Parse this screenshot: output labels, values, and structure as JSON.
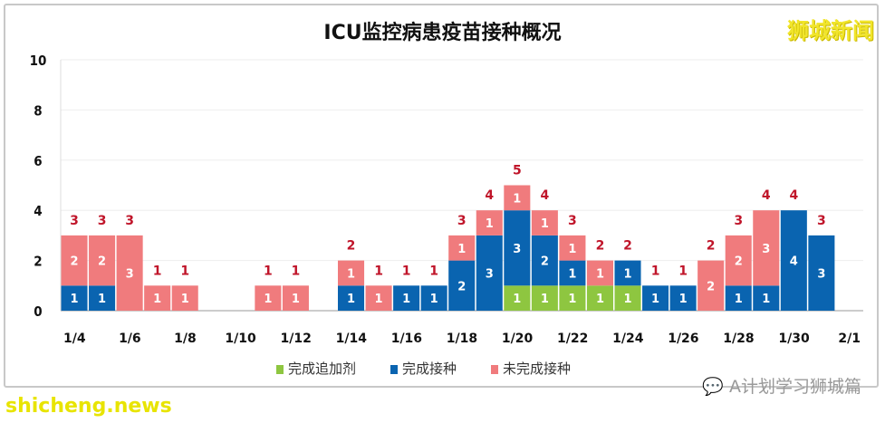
{
  "brand": "狮城新闻",
  "wechat_account": "A计划学习狮城篇",
  "watermark": "shicheng.news",
  "colors": {
    "booster": "#8ec640",
    "complete": "#0a64b0",
    "incomplete": "#f07b7d",
    "total_label": "#c0152a"
  },
  "chart_data": {
    "type": "bar",
    "stacked": true,
    "title": "ICU监控病患疫苗接种概况",
    "xlabel": "",
    "ylabel": "",
    "ylim": [
      0,
      10
    ],
    "yticks": [
      "0",
      "2",
      "4",
      "6",
      "8",
      "10"
    ],
    "grid": true,
    "legend_position": "bottom",
    "categories": [
      "1/4",
      "1/5",
      "1/6",
      "1/7",
      "1/8",
      "1/9",
      "1/10",
      "1/11",
      "1/12",
      "1/13",
      "1/14",
      "1/15",
      "1/16",
      "1/17",
      "1/18",
      "1/19",
      "1/20",
      "1/21",
      "1/22",
      "1/23",
      "1/24",
      "1/25",
      "1/26",
      "1/27",
      "1/28",
      "1/29",
      "1/30",
      "1/31"
    ],
    "xticks": [
      "1/4",
      "1/6",
      "1/8",
      "1/10",
      "1/12",
      "1/14",
      "1/16",
      "1/18",
      "1/20",
      "1/22",
      "1/24",
      "1/26",
      "1/28",
      "1/30",
      "2/1"
    ],
    "series": [
      {
        "name": "完成追加剂",
        "values": [
          0,
          0,
          0,
          0,
          0,
          0,
          0,
          0,
          0,
          0,
          0,
          0,
          0,
          0,
          0,
          0,
          1,
          1,
          1,
          1,
          1,
          0,
          0,
          0,
          0,
          0,
          0,
          0
        ]
      },
      {
        "name": "完成接种",
        "values": [
          1,
          1,
          0,
          0,
          0,
          0,
          0,
          0,
          0,
          0,
          1,
          0,
          1,
          1,
          2,
          3,
          3,
          2,
          1,
          0,
          1,
          1,
          1,
          0,
          1,
          1,
          4,
          3
        ]
      },
      {
        "name": "未完成接种",
        "values": [
          2,
          2,
          3,
          1,
          1,
          0,
          0,
          1,
          1,
          0,
          1,
          1,
          0,
          0,
          1,
          1,
          1,
          1,
          1,
          1,
          0,
          0,
          0,
          2,
          2,
          3,
          0,
          0
        ]
      }
    ],
    "totals": [
      3,
      3,
      3,
      1,
      1,
      0,
      0,
      1,
      1,
      0,
      2,
      1,
      1,
      1,
      3,
      4,
      5,
      4,
      3,
      2,
      2,
      1,
      1,
      2,
      3,
      4,
      4,
      3
    ]
  }
}
